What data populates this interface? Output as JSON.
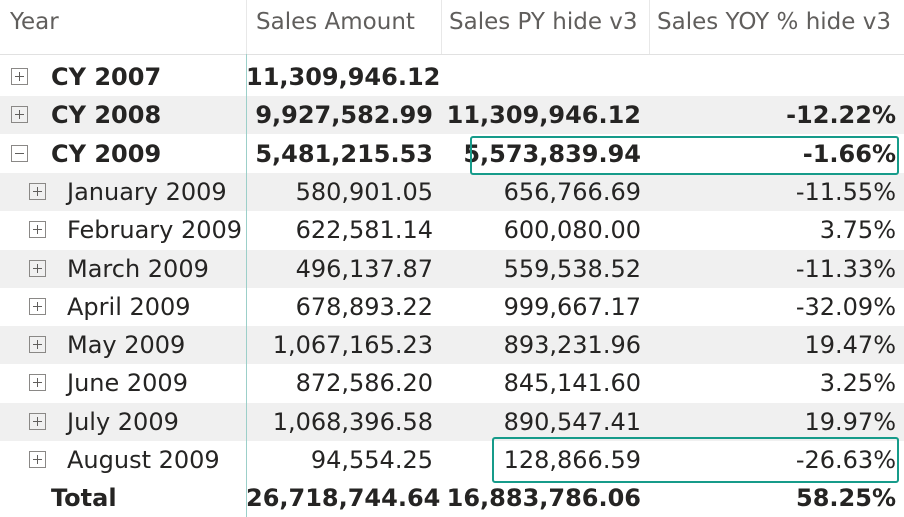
{
  "header": {
    "year": "Year",
    "sales_amount": "Sales Amount",
    "sales_py": "Sales PY hide v3",
    "sales_yoy": "Sales YOY % hide v3"
  },
  "rows": [
    {
      "label": "CY 2007",
      "sales": "11,309,946.12",
      "py": "",
      "yoy": ""
    },
    {
      "label": "CY 2008",
      "sales": "9,927,582.99",
      "py": "11,309,946.12",
      "yoy": "-12.22%"
    },
    {
      "label": "CY 2009",
      "sales": "5,481,215.53",
      "py": "5,573,839.94",
      "yoy": "-1.66%"
    },
    {
      "label": "January 2009",
      "sales": "580,901.05",
      "py": "656,766.69",
      "yoy": "-11.55%"
    },
    {
      "label": "February 2009",
      "sales": "622,581.14",
      "py": "600,080.00",
      "yoy": "3.75%"
    },
    {
      "label": "March 2009",
      "sales": "496,137.87",
      "py": "559,538.52",
      "yoy": "-11.33%"
    },
    {
      "label": "April 2009",
      "sales": "678,893.22",
      "py": "999,667.17",
      "yoy": "-32.09%"
    },
    {
      "label": "May 2009",
      "sales": "1,067,165.23",
      "py": "893,231.96",
      "yoy": "19.47%"
    },
    {
      "label": "June 2009",
      "sales": "872,586.20",
      "py": "845,141.60",
      "yoy": "3.25%"
    },
    {
      "label": "July 2009",
      "sales": "1,068,396.58",
      "py": "890,547.41",
      "yoy": "19.97%"
    },
    {
      "label": "August 2009",
      "sales": "94,554.25",
      "py": "128,866.59",
      "yoy": "-26.63%"
    }
  ],
  "total": {
    "label": "Total",
    "sales": "26,718,744.64",
    "py": "16,883,786.06",
    "yoy": "58.25%"
  },
  "colors": {
    "highlight": "#169b8a",
    "band": "#f0f0f0",
    "separator": "#9ccfc9"
  }
}
